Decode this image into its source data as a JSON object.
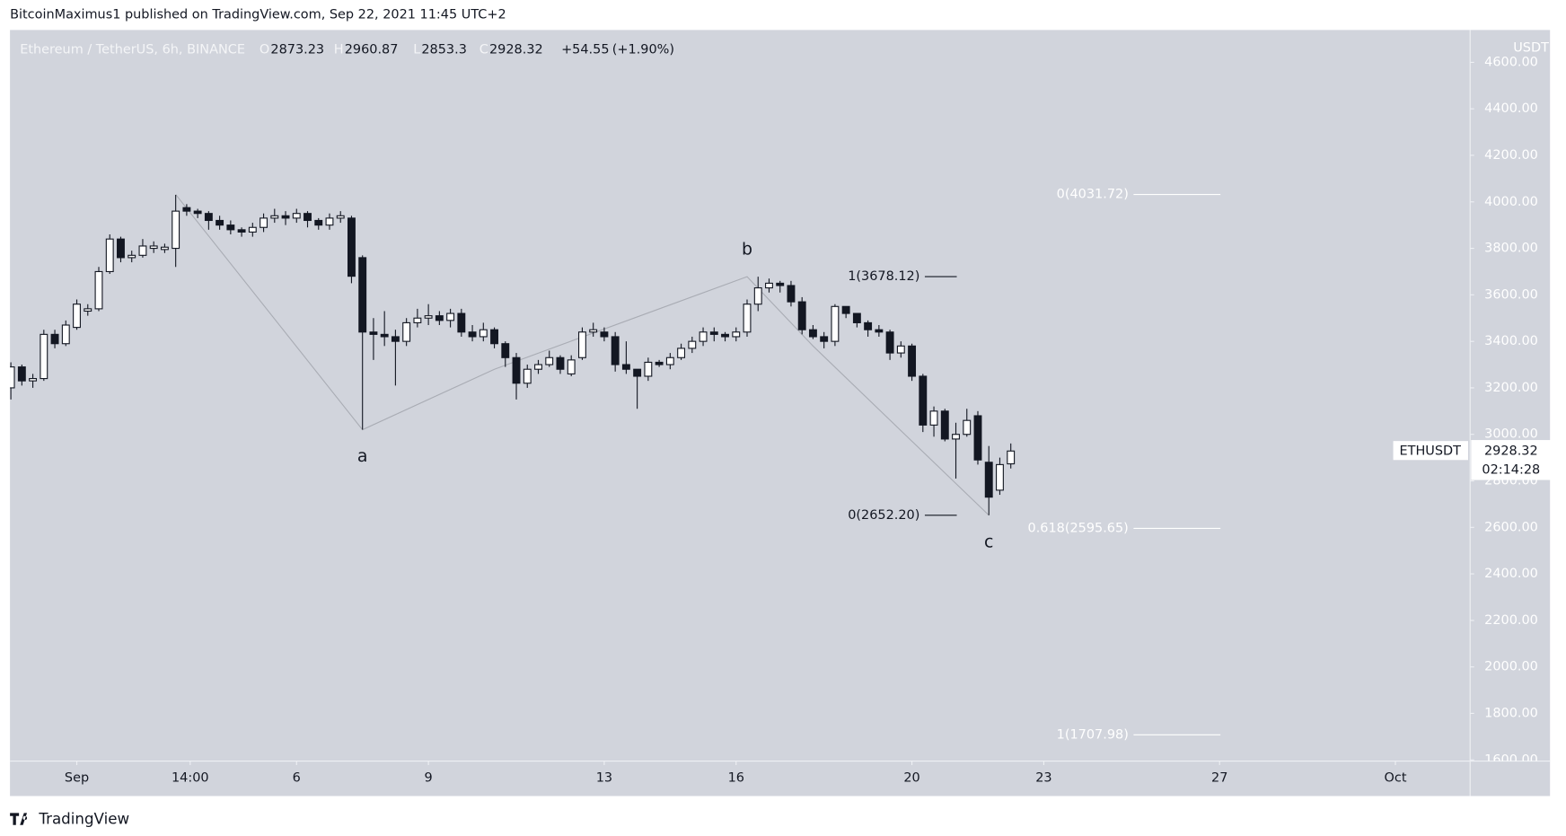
{
  "header": {
    "publisher": "BitcoinMaximus1 published on TradingView.com, Sep 22, 2021 11:45 UTC+2"
  },
  "footer": {
    "brand": "TradingView"
  },
  "chart_data": {
    "type": "candlestick",
    "symbol": "Ethereum / TetherUS, 6h, BINANCE",
    "ohlc_letters": [
      "O",
      "H",
      "L",
      "C"
    ],
    "change": "+54.55",
    "change_pct": "(+1.90%)",
    "y_axis_label": "USDT",
    "ticker": "ETHUSDT",
    "countdown": "02:14:28",
    "up_color": "#ffffff",
    "down_color": "#131722",
    "x": [
      -1.5,
      -1.25,
      -1,
      -0.75,
      -0.5,
      -0.25,
      0,
      0.25,
      0.5,
      0.75,
      1,
      1.25,
      1.5,
      1.75,
      2,
      2.25,
      2.5,
      2.75,
      3,
      3.25,
      3.5,
      3.75,
      4,
      4.25,
      4.5,
      4.75,
      5,
      5.25,
      5.5,
      5.75,
      6,
      6.25,
      6.5,
      6.75,
      7,
      7.25,
      7.5,
      7.75,
      8,
      8.25,
      8.5,
      8.75,
      9,
      9.25,
      9.5,
      9.75,
      10,
      10.25,
      10.5,
      10.75,
      11,
      11.25,
      11.5,
      11.75,
      12,
      12.25,
      12.5,
      12.75,
      13,
      13.25,
      13.5,
      13.75,
      14,
      14.25,
      14.5,
      14.75,
      15,
      15.25,
      15.5,
      15.75,
      16,
      16.25,
      16.5,
      16.75,
      17,
      17.25,
      17.5,
      17.75,
      18,
      18.25,
      18.5,
      18.75,
      19,
      19.25,
      19.5,
      19.75,
      20,
      20.25,
      20.5,
      20.75,
      21,
      21.25
    ],
    "open": [
      3200,
      3290,
      3230,
      3240,
      3430,
      3390,
      3460,
      3530,
      3540,
      3700,
      3840,
      3760,
      3770,
      3800,
      3795,
      3800,
      3975,
      3960,
      3950,
      3920,
      3900,
      3880,
      3870,
      3890,
      3930,
      3940,
      3930,
      3950,
      3920,
      3900,
      3930,
      3930,
      3760,
      3440,
      3430,
      3420,
      3400,
      3480,
      3500,
      3510,
      3490,
      3520,
      3440,
      3420,
      3450,
      3390,
      3330,
      3220,
      3280,
      3300,
      3330,
      3260,
      3330,
      3440,
      3440,
      3420,
      3300,
      3280,
      3250,
      3310,
      3300,
      3330,
      3370,
      3400,
      3440,
      3430,
      3420,
      3440,
      3560,
      3630,
      3650,
      3640,
      3570,
      3450,
      3420,
      3400,
      3550,
      3520,
      3480,
      3450,
      3440,
      3350,
      3380,
      3250,
      3040,
      3100,
      2980,
      3000,
      3080,
      2880,
      2760,
      2873.23
    ],
    "high": [
      3310,
      3300,
      3260,
      3450,
      3450,
      3490,
      3580,
      3560,
      3720,
      3860,
      3850,
      3790,
      3840,
      3830,
      3820,
      4030,
      3990,
      3970,
      3960,
      3940,
      3920,
      3890,
      3910,
      3950,
      3970,
      3960,
      3970,
      3960,
      3930,
      3950,
      3960,
      3940,
      3770,
      3500,
      3530,
      3450,
      3500,
      3540,
      3560,
      3530,
      3540,
      3540,
      3470,
      3480,
      3460,
      3400,
      3350,
      3300,
      3320,
      3360,
      3340,
      3340,
      3460,
      3480,
      3460,
      3440,
      3400,
      3280,
      3330,
      3320,
      3350,
      3390,
      3420,
      3460,
      3460,
      3440,
      3460,
      3580,
      3678,
      3670,
      3660,
      3660,
      3590,
      3470,
      3440,
      3560,
      3550,
      3510,
      3490,
      3470,
      3450,
      3400,
      3390,
      3260,
      3120,
      3110,
      3050,
      3110,
      3100,
      2950,
      2900,
      2960.87
    ],
    "low": [
      3150,
      3210,
      3200,
      3230,
      3370,
      3380,
      3450,
      3510,
      3530,
      3690,
      3740,
      3740,
      3760,
      3780,
      3780,
      3720,
      3940,
      3930,
      3880,
      3880,
      3860,
      3850,
      3850,
      3870,
      3910,
      3900,
      3910,
      3890,
      3880,
      3880,
      3910,
      3650,
      3020,
      3320,
      3380,
      3210,
      3380,
      3460,
      3470,
      3470,
      3460,
      3420,
      3400,
      3400,
      3370,
      3290,
      3150,
      3200,
      3260,
      3290,
      3260,
      3250,
      3320,
      3420,
      3400,
      3270,
      3260,
      3110,
      3230,
      3290,
      3280,
      3320,
      3350,
      3380,
      3400,
      3400,
      3400,
      3420,
      3530,
      3610,
      3610,
      3550,
      3430,
      3410,
      3370,
      3380,
      3500,
      3460,
      3420,
      3420,
      3320,
      3330,
      3230,
      3010,
      2990,
      2970,
      2810,
      2990,
      2870,
      2652.2,
      2740,
      2853.3
    ],
    "close": [
      3290,
      3230,
      3240,
      3430,
      3390,
      3470,
      3560,
      3540,
      3700,
      3840,
      3760,
      3770,
      3810,
      3810,
      3805,
      3960,
      3960,
      3950,
      3920,
      3900,
      3880,
      3870,
      3890,
      3930,
      3940,
      3930,
      3950,
      3920,
      3900,
      3930,
      3940,
      3680,
      3440,
      3430,
      3420,
      3400,
      3480,
      3500,
      3510,
      3490,
      3520,
      3440,
      3420,
      3450,
      3390,
      3330,
      3220,
      3280,
      3300,
      3330,
      3280,
      3320,
      3440,
      3450,
      3420,
      3300,
      3280,
      3250,
      3310,
      3300,
      3330,
      3370,
      3400,
      3440,
      3430,
      3420,
      3440,
      3560,
      3630,
      3650,
      3640,
      3570,
      3450,
      3420,
      3400,
      3550,
      3520,
      3480,
      3450,
      3440,
      3350,
      3380,
      3250,
      3040,
      3100,
      2980,
      3000,
      3060,
      2890,
      2730,
      2870,
      2928.32
    ],
    "xlim": [
      -1.52,
      31.7
    ],
    "xticks": [
      {
        "value": 0,
        "label": "Sep"
      },
      {
        "value": 2.58,
        "label": "14:00"
      },
      {
        "value": 5,
        "label": "6"
      },
      {
        "value": 8,
        "label": "9"
      },
      {
        "value": 12,
        "label": "13"
      },
      {
        "value": 15,
        "label": "16"
      },
      {
        "value": 19,
        "label": "20"
      },
      {
        "value": 22,
        "label": "23"
      },
      {
        "value": 26,
        "label": "27"
      },
      {
        "value": 30,
        "label": "Oct"
      }
    ],
    "ylim": [
      1595,
      4739
    ],
    "yticks": [
      {
        "value": 1600,
        "label": "1600.00"
      },
      {
        "value": 1800,
        "label": "1800.00"
      },
      {
        "value": 2000,
        "label": "2000.00"
      },
      {
        "value": 2200,
        "label": "2200.00"
      },
      {
        "value": 2400,
        "label": "2400.00"
      },
      {
        "value": 2600,
        "label": "2600.00"
      },
      {
        "value": 2800,
        "label": "2800.00"
      },
      {
        "value": 3000,
        "label": "3000.00"
      },
      {
        "value": 3200,
        "label": "3200.00"
      },
      {
        "value": 3400,
        "label": "3400.00"
      },
      {
        "value": 3600,
        "label": "3600.00"
      },
      {
        "value": 3800,
        "label": "3800.00"
      },
      {
        "value": 4000,
        "label": "4000.00"
      },
      {
        "value": 4200,
        "label": "4200.00"
      },
      {
        "value": 4400,
        "label": "4400.00"
      },
      {
        "value": 4600,
        "label": "4600.00"
      }
    ],
    "wave_points": [
      {
        "x": 2.25,
        "y": 4031.72
      },
      {
        "x": 6.5,
        "y": 3020,
        "label": "a"
      },
      {
        "x": 9.5,
        "y": 3280
      },
      {
        "x": 15.25,
        "y": 3678.12,
        "label": "b"
      },
      {
        "x": 16.75,
        "y": 3380
      },
      {
        "x": 20.75,
        "y": 2652.2,
        "label": "c"
      }
    ],
    "fib_ext": [
      {
        "value": 4031.72,
        "label": "0(4031.72)"
      },
      {
        "value": 2595.65,
        "label": "0.618(2595.65)"
      },
      {
        "value": 1707.98,
        "label": "1(1707.98)"
      }
    ],
    "fib_wave": [
      {
        "value": 3678.12,
        "label": "1(3678.12)"
      },
      {
        "value": 2652.2,
        "label": "0(2652.20)"
      }
    ]
  }
}
